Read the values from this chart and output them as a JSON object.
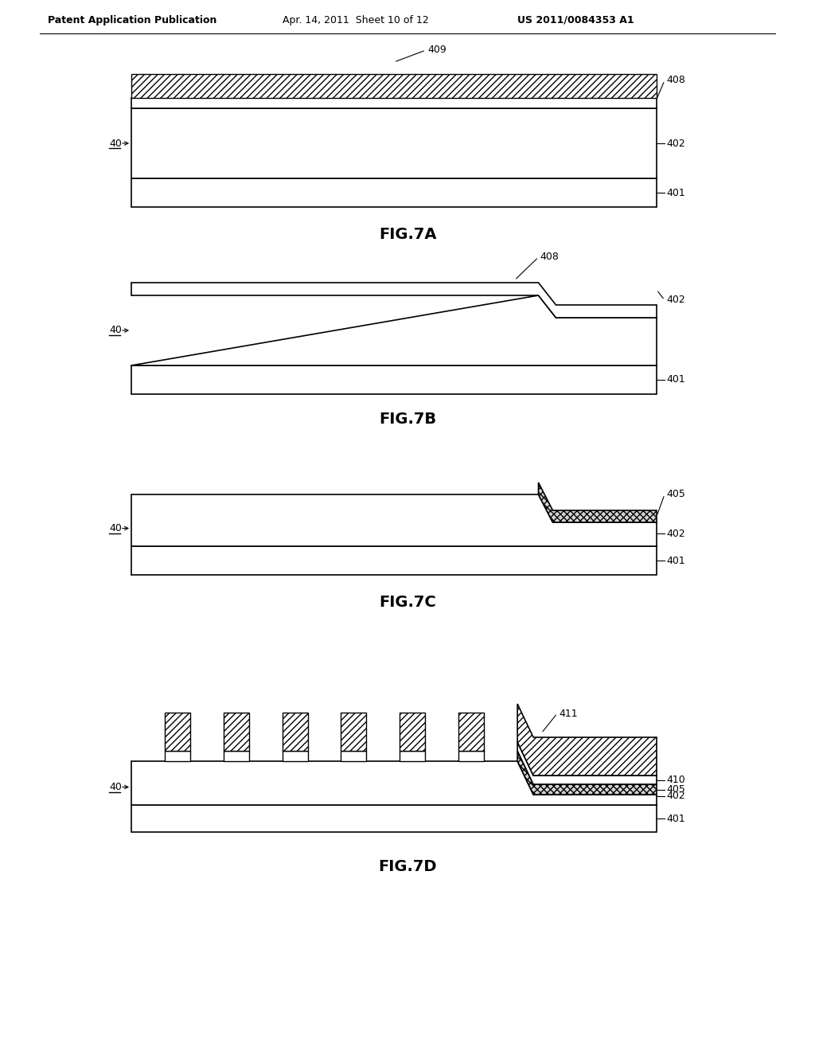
{
  "bg_color": "#ffffff",
  "page_header_left": "Patent Application Publication",
  "page_header_mid": "Apr. 14, 2011  Sheet 10 of 12",
  "page_header_right": "US 2011/0084353 A1"
}
